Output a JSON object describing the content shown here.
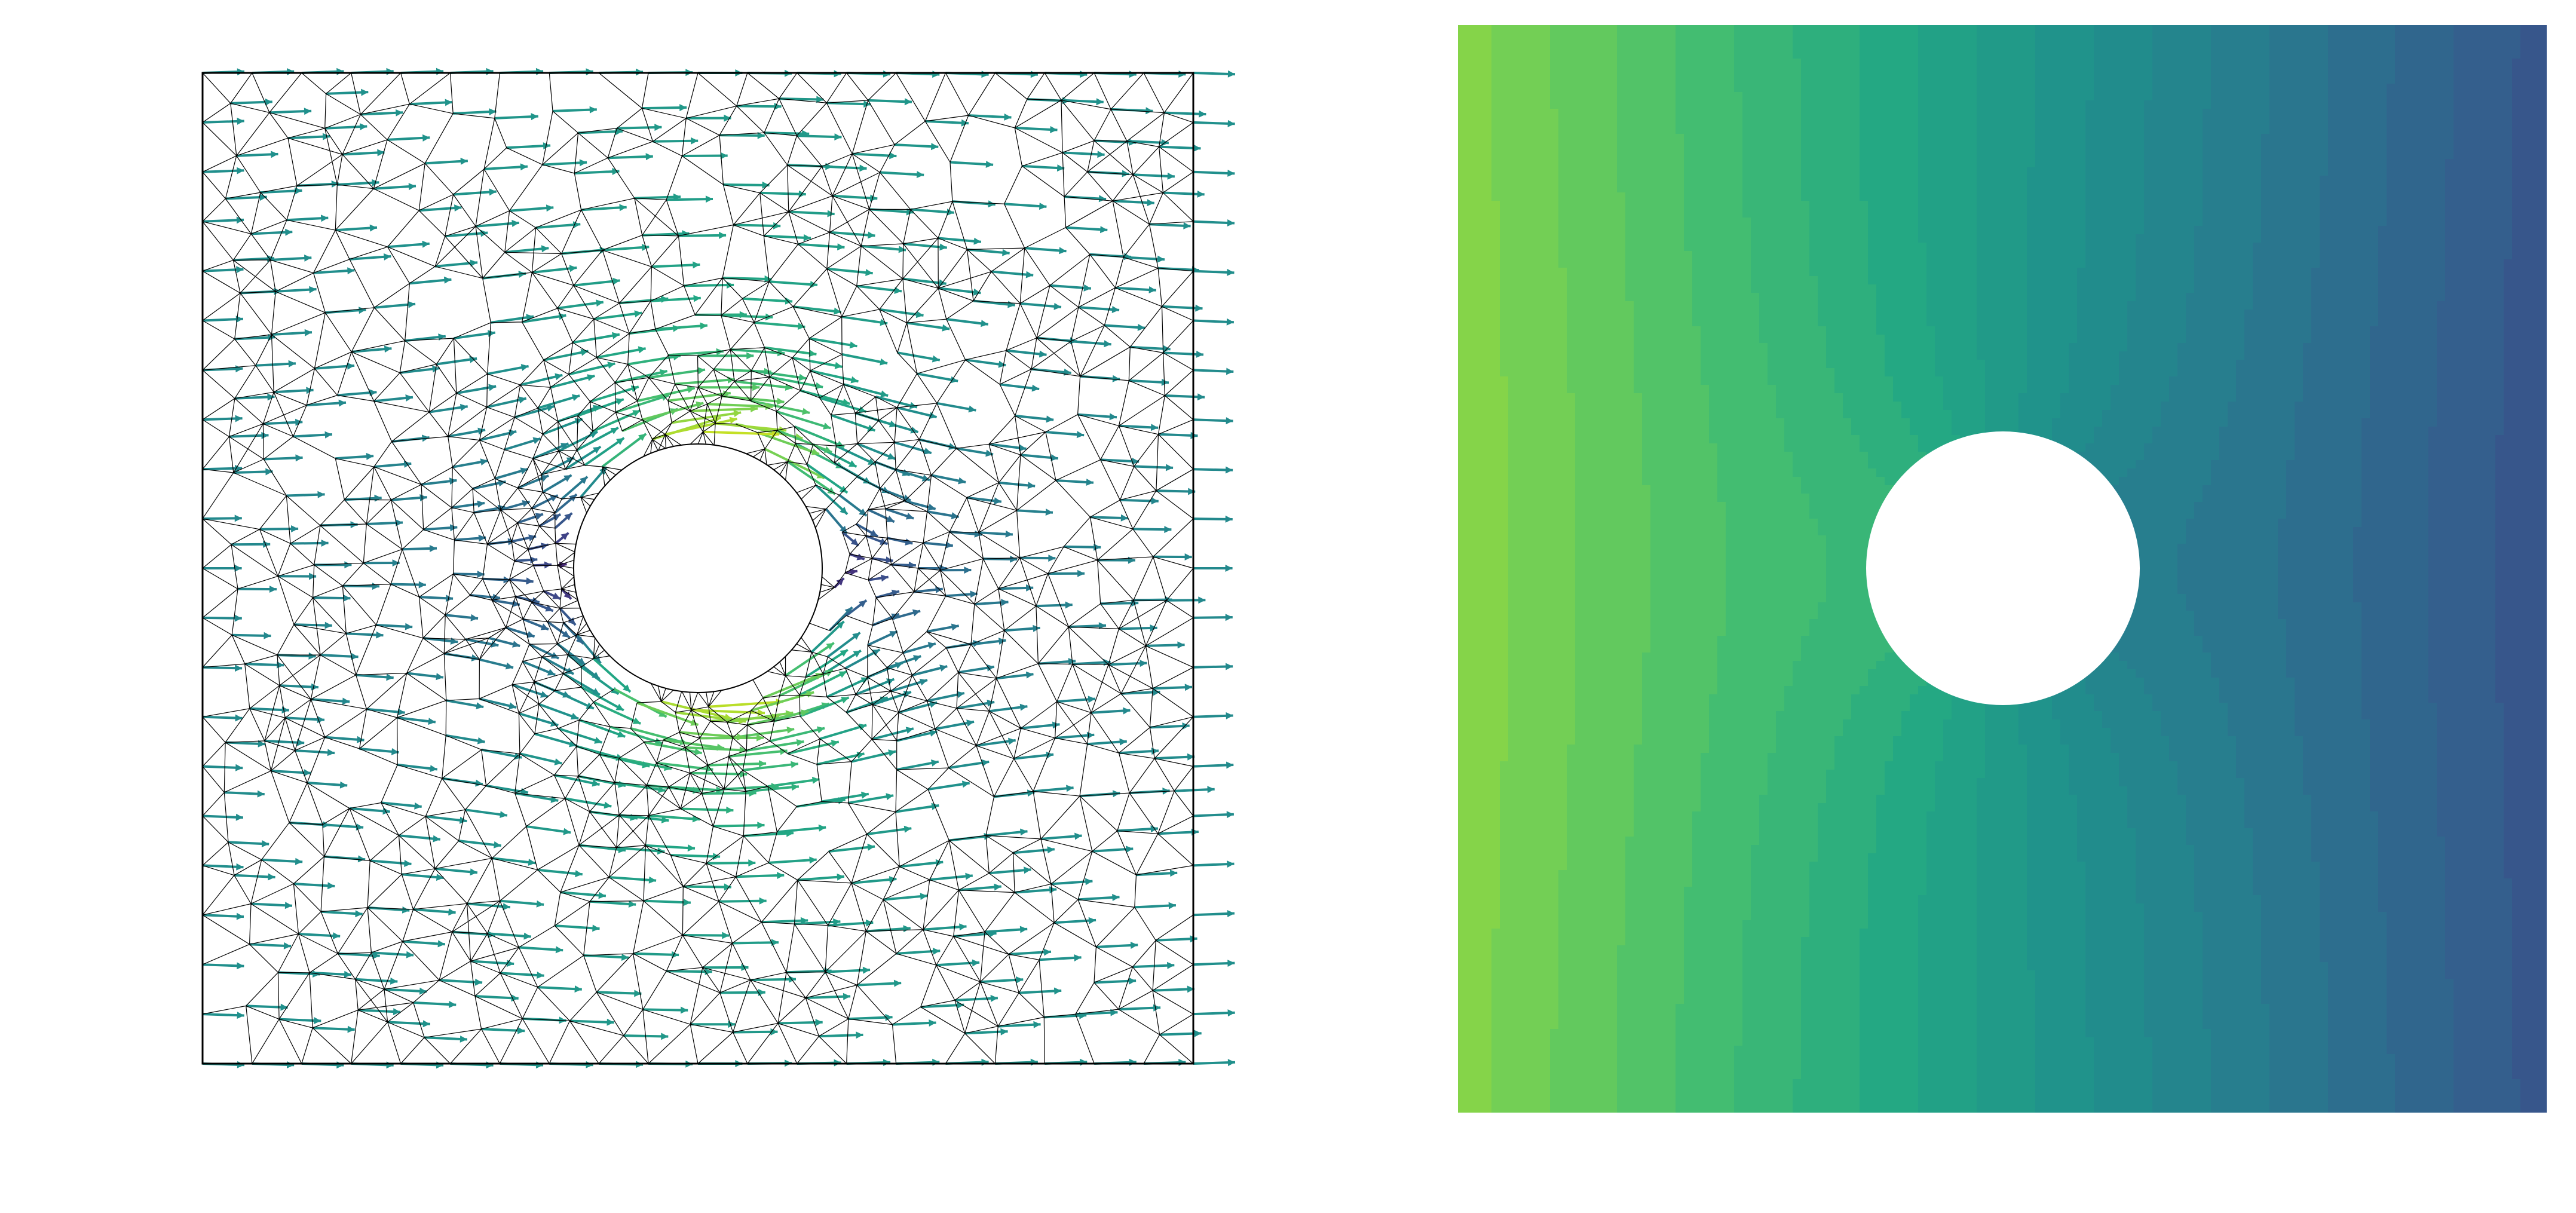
{
  "figure": {
    "panels": [
      {
        "id": "left",
        "kind": "mesh-with-velocity-quivers",
        "description_tags": [
          "triangular-mesh",
          "quiver-arrows",
          "circular-hole"
        ]
      },
      {
        "id": "right",
        "kind": "filled-contour-field",
        "description_tags": [
          "potential-field",
          "circular-hole"
        ]
      }
    ],
    "colormap": "viridis",
    "colors": {
      "mesh_stroke": "#000000",
      "background": "#ffffff"
    },
    "flow": {
      "uniform_speed": 1.0,
      "cylinder_radius": 0.25,
      "domain": [
        -1,
        1
      ]
    }
  }
}
